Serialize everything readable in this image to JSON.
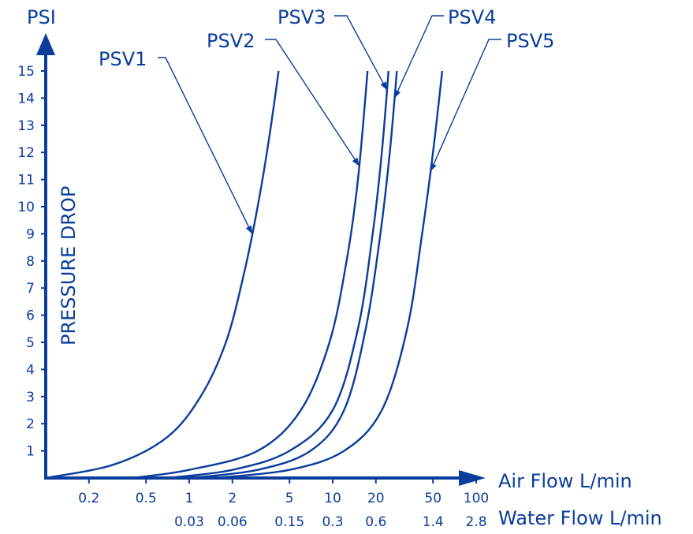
{
  "chart_data": {
    "type": "line",
    "title": "",
    "y_unit": "PSI",
    "ylabel": "PRESSURE DROP",
    "ylim": [
      0,
      15
    ],
    "y_ticks": [
      1,
      2,
      3,
      4,
      5,
      6,
      7,
      8,
      9,
      10,
      11,
      12,
      13,
      14,
      15
    ],
    "x_scale": "log",
    "xlabel": "Air Flow L/min",
    "xlim": [
      0.1,
      100
    ],
    "x_ticks": [
      0.2,
      0.5,
      1,
      2,
      5,
      10,
      20,
      50,
      100
    ],
    "x2label": "Water Flow L/min",
    "x2_ticks": [
      {
        "air": 1,
        "label": "0.03"
      },
      {
        "air": 2,
        "label": "0.06"
      },
      {
        "air": 5,
        "label": "0.15"
      },
      {
        "air": 10,
        "label": "0.3"
      },
      {
        "air": 20,
        "label": "0.6"
      },
      {
        "air": 50,
        "label": "1.4"
      },
      {
        "air": 100,
        "label": "2.8"
      }
    ],
    "grid": false,
    "series": [
      {
        "name": "PSV1",
        "x": [
          0.1,
          0.3,
          0.7,
          1.2,
          1.8,
          2.4,
          3.0,
          3.6,
          4.2
        ],
        "y": [
          0,
          0.5,
          1.5,
          3.0,
          5.0,
          7.5,
          10.0,
          12.5,
          15
        ]
      },
      {
        "name": "PSV2",
        "x": [
          0.4,
          1.0,
          3.0,
          6.0,
          9.5,
          12.5,
          15.0,
          17.5
        ],
        "y": [
          0,
          0.3,
          1.0,
          2.5,
          5.0,
          8.0,
          11.0,
          15
        ]
      },
      {
        "name": "PSV3",
        "x": [
          0.7,
          2.0,
          5.0,
          10.0,
          15.0,
          19.0,
          22.0,
          24.5
        ],
        "y": [
          0,
          0.3,
          1.0,
          2.5,
          5.5,
          9.0,
          12.0,
          15
        ]
      },
      {
        "name": "PSV4",
        "x": [
          1.0,
          3.0,
          7.0,
          12.0,
          17.0,
          21.5,
          25.0,
          28.0
        ],
        "y": [
          0,
          0.3,
          1.0,
          2.5,
          5.5,
          9.0,
          12.0,
          15
        ]
      },
      {
        "name": "PSV5",
        "x": [
          1.5,
          5.0,
          12.0,
          22.0,
          33.0,
          42.0,
          50.0,
          58.0
        ],
        "y": [
          0,
          0.3,
          1.0,
          2.5,
          5.5,
          9.0,
          12.0,
          15
        ]
      }
    ],
    "annotations": [
      {
        "text": "PSV1",
        "series": "PSV1",
        "at_y": 9.0
      },
      {
        "text": "PSV2",
        "series": "PSV2",
        "at_y": 11.5
      },
      {
        "text": "PSV3",
        "series": "PSV3",
        "at_y": 14.3
      },
      {
        "text": "PSV4",
        "series": "PSV4",
        "at_y": 14.0
      },
      {
        "text": "PSV5",
        "series": "PSV5",
        "at_y": 11.3
      }
    ],
    "colors": {
      "ink": "#0a3d9c"
    }
  }
}
